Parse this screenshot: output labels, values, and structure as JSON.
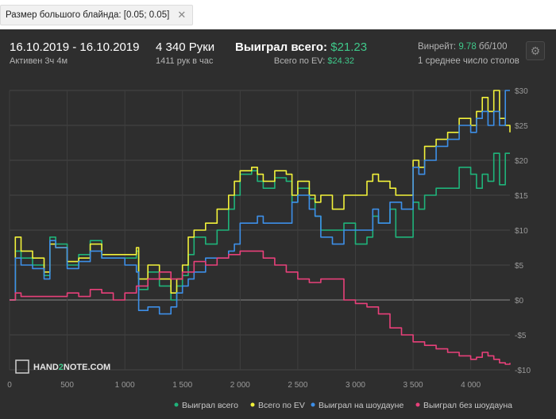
{
  "filter": {
    "label": "Размер большого блайнда: [0.05; 0.05]",
    "close": "✕"
  },
  "header": {
    "date_range": "16.10.2019 - 16.10.2019",
    "active": "Активен 3ч 4м",
    "hands": "4 340 Руки",
    "hands_per_hour": "1411 рук в час",
    "won_label": "Выиграл всего:",
    "won_value": "$21.23",
    "ev_label": "Всего по EV:",
    "ev_value": "$24.32",
    "winrate_label": "Винрейт:",
    "winrate_value": "9.78",
    "winrate_unit": "бб/100",
    "tables": "1 среднее число столов"
  },
  "settings_icon": "gear-icon",
  "watermark": {
    "pre": "HAND",
    "mid": "2",
    "post": "NOTE.COM"
  },
  "colors": {
    "green": "#1fb37a",
    "yellow": "#f2f23a",
    "blue": "#3d8fe8",
    "pink": "#e8407a",
    "bg": "#2e2e2e"
  },
  "chart_data": {
    "type": "line",
    "xlim": [
      0,
      4340
    ],
    "ylim": [
      -10,
      30
    ],
    "x_ticks": [
      0,
      500,
      1000,
      1500,
      2000,
      2500,
      3000,
      3500,
      4000
    ],
    "x_tick_labels": [
      "0",
      "500",
      "1 000",
      "1 500",
      "2 000",
      "2 500",
      "3 000",
      "3 500",
      "4 000"
    ],
    "y_ticks": [
      30,
      25,
      20,
      15,
      10,
      5,
      0,
      -5,
      -10
    ],
    "y_tick_labels": [
      "$30",
      "$25",
      "$20",
      "$15",
      "$10",
      "$5",
      "$0",
      "-$5",
      "-$10"
    ],
    "series": [
      {
        "name": "Выиграл всего",
        "color": "#1fb37a",
        "x": [
          0,
          50,
          100,
          200,
          300,
          350,
          400,
          500,
          600,
          700,
          800,
          900,
          1000,
          1100,
          1120,
          1200,
          1300,
          1400,
          1450,
          1500,
          1550,
          1600,
          1700,
          1800,
          1900,
          1950,
          2000,
          2100,
          2150,
          2200,
          2300,
          2400,
          2450,
          2500,
          2600,
          2650,
          2700,
          2800,
          2900,
          3000,
          3100,
          3150,
          3200,
          3300,
          3350,
          3400,
          3500,
          3550,
          3600,
          3700,
          3800,
          3900,
          4000,
          4050,
          4100,
          4150,
          4200,
          4250,
          4300,
          4340
        ],
        "y": [
          0,
          7,
          6,
          5,
          3.5,
          9,
          8,
          5,
          6.5,
          8.5,
          6,
          6,
          6,
          7,
          1.5,
          4,
          2,
          0,
          2,
          3.5,
          6.5,
          9,
          8,
          10,
          13,
          15,
          18,
          18.5,
          17,
          16,
          17.5,
          17,
          14,
          16,
          14.5,
          12,
          10,
          10,
          11,
          8,
          9,
          12,
          11,
          13,
          9,
          9,
          14,
          13,
          15,
          16,
          16,
          19,
          18,
          16,
          18,
          17,
          21,
          16.5,
          21,
          21
        ]
      },
      {
        "name": "Всего по EV",
        "color": "#f2f23a",
        "x": [
          0,
          50,
          100,
          200,
          300,
          350,
          400,
          500,
          600,
          700,
          800,
          900,
          1000,
          1100,
          1120,
          1200,
          1300,
          1400,
          1450,
          1500,
          1550,
          1600,
          1700,
          1800,
          1900,
          1950,
          2000,
          2100,
          2150,
          2200,
          2300,
          2400,
          2450,
          2500,
          2600,
          2650,
          2700,
          2800,
          2900,
          3000,
          3100,
          3150,
          3200,
          3300,
          3350,
          3400,
          3500,
          3550,
          3600,
          3700,
          3800,
          3900,
          4000,
          4050,
          4100,
          4150,
          4200,
          4250,
          4300,
          4340
        ],
        "y": [
          0,
          9,
          7,
          6,
          4,
          8,
          7.5,
          5.5,
          6,
          8,
          6.5,
          6.5,
          6.5,
          7.5,
          3,
          5,
          3,
          1,
          3,
          5,
          9,
          10,
          11,
          13,
          15,
          17,
          18.5,
          19,
          18,
          17,
          18.5,
          18,
          15,
          17,
          15,
          14,
          15,
          13,
          15,
          15,
          17,
          18,
          17,
          16,
          15,
          15,
          20,
          19,
          22,
          23,
          24,
          26,
          25,
          27,
          29,
          27,
          30,
          26,
          25,
          24
        ]
      },
      {
        "name": "Выиграл на шоудауне",
        "color": "#3d8fe8",
        "x": [
          0,
          50,
          100,
          200,
          300,
          350,
          400,
          500,
          600,
          700,
          800,
          900,
          1000,
          1100,
          1120,
          1200,
          1300,
          1400,
          1450,
          1500,
          1550,
          1600,
          1700,
          1800,
          1900,
          1950,
          2000,
          2100,
          2150,
          2200,
          2300,
          2400,
          2450,
          2500,
          2600,
          2650,
          2700,
          2800,
          2900,
          3000,
          3100,
          3150,
          3200,
          3300,
          3350,
          3400,
          3500,
          3550,
          3600,
          3700,
          3800,
          3900,
          4000,
          4050,
          4100,
          4150,
          4200,
          4250,
          4300,
          4340
        ],
        "y": [
          0,
          6,
          5,
          4.5,
          3,
          8.5,
          7.5,
          4.5,
          5.5,
          7,
          6,
          6,
          5,
          4,
          -1.5,
          -1,
          -2,
          -1,
          1,
          2,
          3,
          4,
          6,
          6,
          7,
          8,
          11,
          11,
          12,
          11,
          11,
          11,
          14,
          15,
          13,
          12,
          9,
          8,
          10,
          10,
          10,
          13,
          11,
          14,
          14,
          13,
          19,
          18,
          20,
          22,
          23,
          25,
          24,
          26,
          27,
          25,
          27,
          25,
          30,
          30
        ]
      },
      {
        "name": "Выиграл без шоудауна",
        "color": "#e8407a",
        "x": [
          0,
          50,
          100,
          200,
          300,
          400,
          500,
          600,
          700,
          800,
          900,
          1000,
          1100,
          1200,
          1300,
          1400,
          1500,
          1600,
          1700,
          1800,
          1900,
          2000,
          2100,
          2200,
          2300,
          2400,
          2500,
          2600,
          2700,
          2800,
          2900,
          3000,
          3100,
          3200,
          3300,
          3400,
          3500,
          3600,
          3700,
          3800,
          3900,
          4000,
          4050,
          4100,
          4150,
          4200,
          4250,
          4300,
          4340
        ],
        "y": [
          0,
          1,
          0.5,
          0.5,
          0.5,
          0.5,
          1,
          0.5,
          1.5,
          1,
          0,
          1,
          2,
          3,
          4,
          3,
          4,
          5.5,
          5,
          6,
          6.5,
          7,
          7,
          6,
          5,
          4,
          3,
          2.5,
          3,
          3,
          0,
          -0.5,
          -1,
          -2,
          -4,
          -5,
          -6,
          -6.5,
          -7,
          -7.5,
          -8,
          -8.5,
          -8.2,
          -7.5,
          -8,
          -8.5,
          -9,
          -9.2,
          -9
        ]
      }
    ]
  }
}
